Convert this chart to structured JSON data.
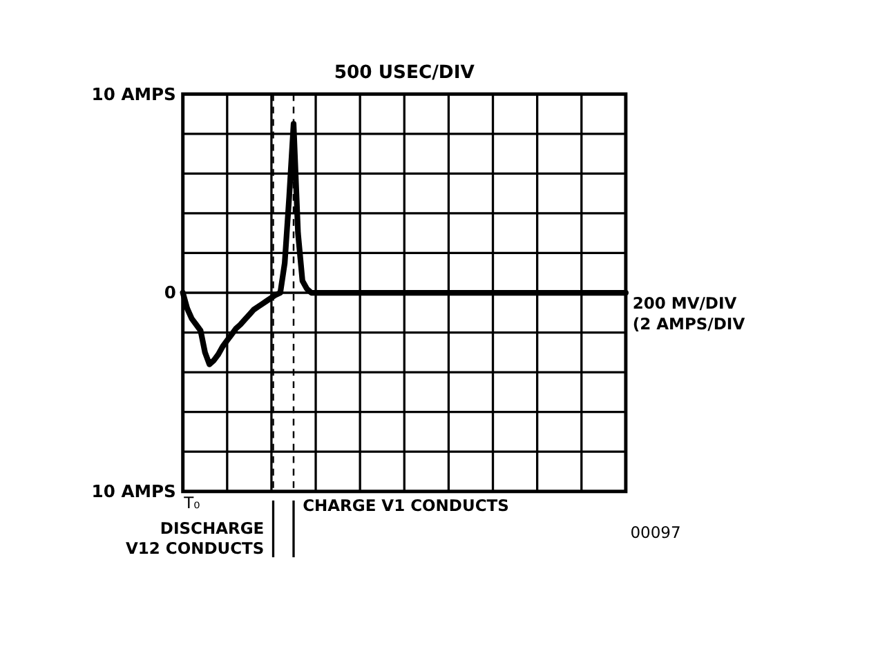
{
  "chart_data": {
    "type": "line",
    "title": "500 USEC/DIV",
    "ylabel": "200 MV/DIV\n(2 AMPS/DIV",
    "grid": true,
    "marker": "none",
    "line_style": "solid",
    "categories": [
      null,
      null,
      null,
      null,
      null,
      null,
      null,
      null,
      null,
      null,
      null,
      null,
      null,
      null,
      null,
      null,
      null,
      null,
      null,
      null,
      null,
      null,
      null,
      null,
      null,
      null,
      null,
      null,
      null,
      null,
      null,
      null,
      null,
      null,
      null,
      null,
      null,
      null,
      null,
      null,
      null,
      null,
      null,
      null,
      null,
      null,
      null,
      null,
      null,
      null,
      null,
      null,
      null,
      null,
      null,
      null,
      null,
      null,
      null,
      null,
      null,
      null,
      null,
      null,
      null,
      null,
      null,
      null,
      null,
      null,
      null,
      null,
      null,
      null,
      null,
      null,
      null,
      null,
      null,
      null,
      null,
      null,
      null,
      null,
      null,
      null,
      null,
      null,
      null,
      null,
      null,
      null,
      null,
      null,
      null,
      null,
      null,
      null,
      null,
      null,
      null
    ],
    "series": [
      {
        "color": "#000000",
        "values": [
          0,
          -0.8,
          -1.3,
          -1.6,
          -1.9,
          -3.0,
          -3.6,
          -3.4,
          -3.1,
          -2.7,
          -2.4,
          -2.1,
          -1.8,
          -1.6,
          -1.35,
          -1.1,
          -0.85,
          -0.7,
          -0.55,
          -0.4,
          -0.25,
          -0.1,
          0,
          1.5,
          4.8,
          8.5,
          3.0,
          0.6,
          0.2,
          0,
          0,
          0,
          0,
          0,
          0,
          0,
          0,
          0,
          0,
          0,
          0,
          0,
          0,
          0,
          0,
          0,
          0,
          0,
          0,
          0,
          0,
          0,
          0,
          0,
          0,
          0,
          0,
          0,
          0,
          0,
          0,
          0,
          0,
          0,
          0,
          0,
          0,
          0,
          0,
          0,
          0,
          0,
          0,
          0,
          0,
          0,
          0,
          0,
          0,
          0,
          0,
          0,
          0,
          0,
          0,
          0,
          0,
          0,
          0,
          0,
          0,
          0,
          0,
          0,
          0,
          0,
          0,
          0,
          0,
          0,
          0
        ]
      }
    ],
    "ylim": [
      -10,
      10
    ],
    "yticks": [
      {
        "value": -10,
        "label": "10 AMPS"
      },
      {
        "value": -8,
        "label": null
      },
      {
        "value": -6,
        "label": null
      },
      {
        "value": -4,
        "label": null
      },
      {
        "value": -2,
        "label": null
      },
      0,
      {
        "value": 2,
        "label": null
      },
      {
        "value": 4,
        "label": null
      },
      {
        "value": 6,
        "label": null
      },
      {
        "value": 8,
        "label": null
      },
      {
        "value": 10,
        "label": "10 AMPS"
      }
    ],
    "annotations": [
      "T₀",
      "DISCHARGE\nV12 CONDUCTS",
      "CHARGE V1 CONDUCTS",
      "00097"
    ]
  }
}
